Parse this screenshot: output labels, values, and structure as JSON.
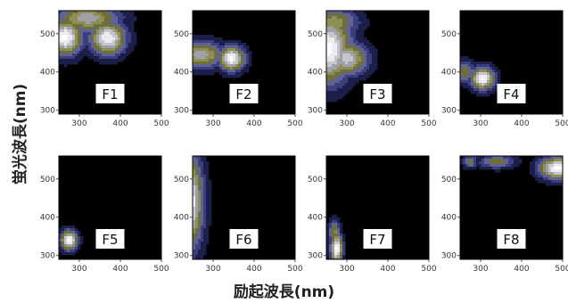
{
  "figure": {
    "ylabel": "蛍光波長(nm)",
    "xlabel": "励起波長(nm)"
  },
  "chart_data": {
    "type": "heatmap",
    "description_axes": {
      "x_ticks": [
        300,
        400,
        500
      ],
      "y_ticks": [
        300,
        400,
        500
      ],
      "xlim": [
        250,
        500
      ],
      "ylim": [
        290,
        560
      ]
    },
    "panels": [
      {
        "label": "F1",
        "peaks": [
          {
            "ex": 265,
            "em": 490,
            "intensity": 1.0,
            "sx": 28,
            "sy": 32
          },
          {
            "ex": 370,
            "em": 488,
            "intensity": 0.95,
            "sx": 30,
            "sy": 30
          },
          {
            "ex": 320,
            "em": 540,
            "intensity": 0.7,
            "sx": 55,
            "sy": 25
          }
        ]
      },
      {
        "label": "F2",
        "peaks": [
          {
            "ex": 345,
            "em": 435,
            "intensity": 1.0,
            "sx": 22,
            "sy": 22
          },
          {
            "ex": 270,
            "em": 445,
            "intensity": 0.7,
            "sx": 40,
            "sy": 25
          }
        ]
      },
      {
        "label": "F3",
        "peaks": [
          {
            "ex": 255,
            "em": 460,
            "intensity": 1.0,
            "sx": 38,
            "sy": 60
          },
          {
            "ex": 300,
            "em": 435,
            "intensity": 0.8,
            "sx": 35,
            "sy": 30
          },
          {
            "ex": 270,
            "em": 530,
            "intensity": 0.6,
            "sx": 40,
            "sy": 25
          }
        ]
      },
      {
        "label": "F4",
        "peaks": [
          {
            "ex": 305,
            "em": 383,
            "intensity": 1.0,
            "sx": 20,
            "sy": 20
          },
          {
            "ex": 260,
            "em": 400,
            "intensity": 0.5,
            "sx": 20,
            "sy": 20
          }
        ]
      },
      {
        "label": "F5",
        "peaks": [
          {
            "ex": 275,
            "em": 340,
            "intensity": 1.0,
            "sx": 14,
            "sy": 18
          }
        ]
      },
      {
        "label": "F6",
        "peaks": [
          {
            "ex": 240,
            "em": 440,
            "intensity": 1.0,
            "sx": 24,
            "sy": 85
          }
        ]
      },
      {
        "label": "F7",
        "peaks": [
          {
            "ex": 275,
            "em": 318,
            "intensity": 1.0,
            "sx": 10,
            "sy": 28
          },
          {
            "ex": 270,
            "em": 360,
            "intensity": 0.55,
            "sx": 10,
            "sy": 22
          }
        ]
      },
      {
        "label": "F8",
        "peaks": [
          {
            "ex": 490,
            "em": 528,
            "intensity": 1.0,
            "sx": 32,
            "sy": 20
          },
          {
            "ex": 340,
            "em": 545,
            "intensity": 0.5,
            "sx": 30,
            "sy": 12
          },
          {
            "ex": 275,
            "em": 545,
            "intensity": 0.45,
            "sx": 12,
            "sy": 12
          }
        ]
      }
    ],
    "colormap": [
      "#000000",
      "#1c1f4a",
      "#3b3f7e",
      "#5f6396",
      "#6f6f3a",
      "#8e8f55",
      "#a0a0a8",
      "#c6c6cc",
      "#ececef",
      "#ffffff"
    ]
  }
}
